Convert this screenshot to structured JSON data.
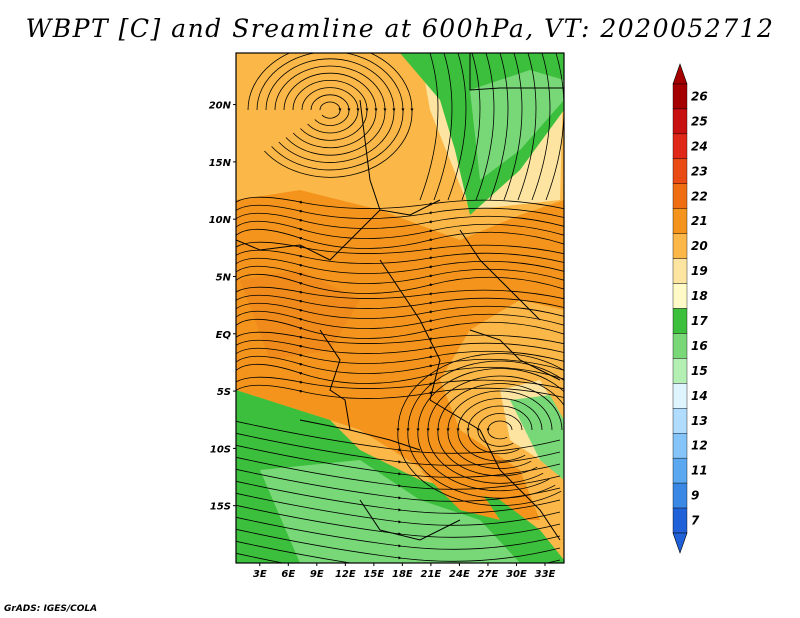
{
  "title": "WBPT [C] and Sreamline at 600hPa, VT: 2020052712",
  "footer": "GrADS: IGES/COLA",
  "map": {
    "lat_labels": [
      "20N",
      "15N",
      "10N",
      "5N",
      "EQ",
      "5S",
      "10S",
      "15S"
    ],
    "lat_values": [
      20,
      15,
      10,
      5,
      0,
      -5,
      -10,
      -15
    ],
    "lon_labels": [
      "3E",
      "6E",
      "9E",
      "12E",
      "15E",
      "18E",
      "21E",
      "24E",
      "27E",
      "30E",
      "33E"
    ],
    "lon_values": [
      3,
      6,
      9,
      12,
      15,
      18,
      21,
      24,
      27,
      30,
      33
    ],
    "lat_range": [
      -20,
      24.5
    ],
    "lon_range": [
      0.5,
      35
    ]
  },
  "colorbar": {
    "levels": [
      "26",
      "25",
      "24",
      "23",
      "22",
      "21",
      "20",
      "19",
      "18",
      "17",
      "16",
      "15",
      "14",
      "13",
      "12",
      "11",
      "9",
      "7"
    ],
    "colors": [
      "#a50000",
      "#c81010",
      "#e02818",
      "#ea4a14",
      "#f06e12",
      "#f4941c",
      "#fbb848",
      "#fde4a0",
      "#fffac8",
      "#3cbf3c",
      "#78d878",
      "#b4f0b4",
      "#dff4ff",
      "#b0dcff",
      "#84c4f8",
      "#5aa8f0",
      "#3a88e6",
      "#2060d8"
    ],
    "top_triangle_color": "#a50000",
    "bottom_triangle_color": "#2060d8"
  },
  "colors": {
    "orange_band": "#f4941c",
    "light_orange": "#fbb848",
    "pale_yellow": "#fde4a0",
    "green": "#3cbf3c",
    "light_green": "#78d878",
    "streamline": "#000000"
  }
}
